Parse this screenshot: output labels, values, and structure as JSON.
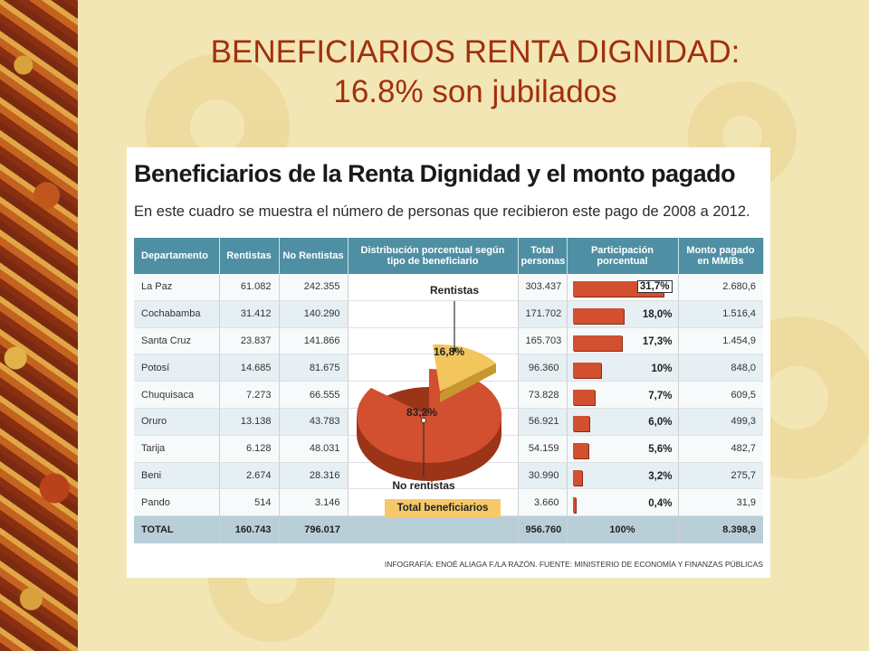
{
  "slide": {
    "title_line1": "BENEFICIARIOS RENTA DIGNIDAD:",
    "title_line2": "16.8% son jubilados"
  },
  "infographic": {
    "heading": "Beneficiarios de la Renta Dignidad y el monto pagado",
    "subheading": "En este cuadro se muestra el número de personas que recibieron este pago de 2008 a 2012.",
    "columns": {
      "departamento": "Departamento",
      "rentistas": "Rentistas",
      "no_rentistas": "No Rentistas",
      "distribucion": "Distribución porcentual según tipo de beneficiario",
      "total_personas": "Total personas",
      "participacion": "Participación porcentual",
      "monto": "Monto pagado en MM/Bs"
    },
    "rows": [
      {
        "dept": "La Paz",
        "rentistas": "61.082",
        "no_rentistas": "242.355",
        "total": "303.437",
        "pct_label": "31,7%",
        "pct": 31.7,
        "monto": "2.680,6"
      },
      {
        "dept": "Cochabamba",
        "rentistas": "31.412",
        "no_rentistas": "140.290",
        "total": "171.702",
        "pct_label": "18,0%",
        "pct": 18.0,
        "monto": "1.516,4"
      },
      {
        "dept": "Santa Cruz",
        "rentistas": "23.837",
        "no_rentistas": "141.866",
        "total": "165.703",
        "pct_label": "17,3%",
        "pct": 17.3,
        "monto": "1.454,9"
      },
      {
        "dept": "Potosí",
        "rentistas": "14.685",
        "no_rentistas": "81.675",
        "total": "96.360",
        "pct_label": "10%",
        "pct": 10.0,
        "monto": "848,0"
      },
      {
        "dept": "Chuquisaca",
        "rentistas": "7.273",
        "no_rentistas": "66.555",
        "total": "73.828",
        "pct_label": "7,7%",
        "pct": 7.7,
        "monto": "609,5"
      },
      {
        "dept": "Oruro",
        "rentistas": "13.138",
        "no_rentistas": "43.783",
        "total": "56.921",
        "pct_label": "6,0%",
        "pct": 6.0,
        "monto": "499,3"
      },
      {
        "dept": "Tarija",
        "rentistas": "6.128",
        "no_rentistas": "48.031",
        "total": "54.159",
        "pct_label": "5,6%",
        "pct": 5.6,
        "monto": "482,7"
      },
      {
        "dept": "Beni",
        "rentistas": "2.674",
        "no_rentistas": "28.316",
        "total": "30.990",
        "pct_label": "3,2%",
        "pct": 3.2,
        "monto": "275,7"
      },
      {
        "dept": "Pando",
        "rentistas": "514",
        "no_rentistas": "3.146",
        "total": "3.660",
        "pct_label": "0,4%",
        "pct": 0.4,
        "monto": "31,9"
      }
    ],
    "total_row": {
      "dept": "TOTAL",
      "rentistas": "160.743",
      "no_rentistas": "796.017",
      "total": "956.760",
      "pct_label": "100%",
      "monto": "8.398,9"
    },
    "pie": {
      "rentistas_label": "Rentistas",
      "rentistas_pct": "16,8%",
      "no_rentistas_label": "No rentistas",
      "no_rentistas_pct": "83,2%",
      "rentistas_value": 16.8,
      "no_rentistas_value": 83.2
    },
    "total_beneficiarios_label": "Total beneficiarios",
    "credit": "INFOGRAFÍA: ENOÉ ALIAGA F./LA RAZÓN. FUENTE: MINISTERIO DE ECONOMÍA Y FINANZAS PÚBLICAS",
    "colors": {
      "bar": "#d24f2f",
      "header": "#4f8fa3",
      "pie_main": "#d24f2f",
      "pie_slice": "#f2c65d"
    }
  }
}
